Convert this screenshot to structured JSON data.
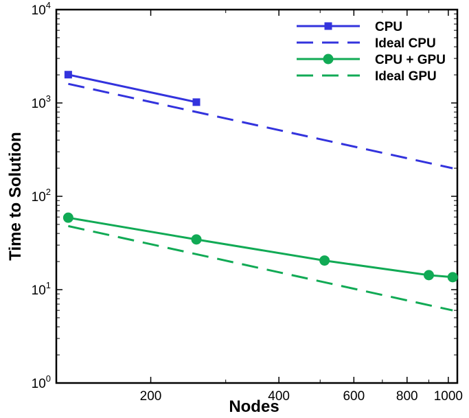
{
  "chart_data": {
    "type": "line",
    "xlabel": "Nodes",
    "ylabel": "Time to Solution",
    "xscale": "log",
    "yscale": "log",
    "xlim": [
      120,
      1050
    ],
    "ylim": [
      1,
      10000
    ],
    "x_ticks": [
      {
        "value": 200,
        "label": "200"
      },
      {
        "value": 400,
        "label": "400"
      },
      {
        "value": 600,
        "label": "600"
      },
      {
        "value": 800,
        "label": "800"
      },
      {
        "value": 1000,
        "label": "1000"
      }
    ],
    "y_ticks": [
      {
        "value": 1,
        "base": "10",
        "exp": "0"
      },
      {
        "value": 10,
        "base": "10",
        "exp": "1"
      },
      {
        "value": 100,
        "base": "10",
        "exp": "2"
      },
      {
        "value": 1000,
        "base": "10",
        "exp": "3"
      },
      {
        "value": 10000,
        "base": "10",
        "exp": "4"
      }
    ],
    "grid": false,
    "legend_position": "top-right",
    "series": [
      {
        "name": "CPU",
        "color": "#3333dd",
        "style": "solid",
        "marker": "square",
        "x": [
          128,
          256
        ],
        "y": [
          2010,
          1020
        ]
      },
      {
        "name": "Ideal CPU",
        "color": "#3333dd",
        "style": "dashed",
        "marker": "none",
        "x": [
          128,
          1024
        ],
        "y": [
          1600,
          200
        ]
      },
      {
        "name": "CPU + GPU",
        "color": "#11aa55",
        "style": "solid",
        "marker": "circle",
        "x": [
          128,
          256,
          512,
          900,
          1024
        ],
        "y": [
          59,
          34.5,
          20.5,
          14.3,
          13.6
        ]
      },
      {
        "name": "Ideal GPU",
        "color": "#11aa55",
        "style": "dashed",
        "marker": "none",
        "x": [
          128,
          1024
        ],
        "y": [
          48,
          6
        ]
      }
    ]
  }
}
